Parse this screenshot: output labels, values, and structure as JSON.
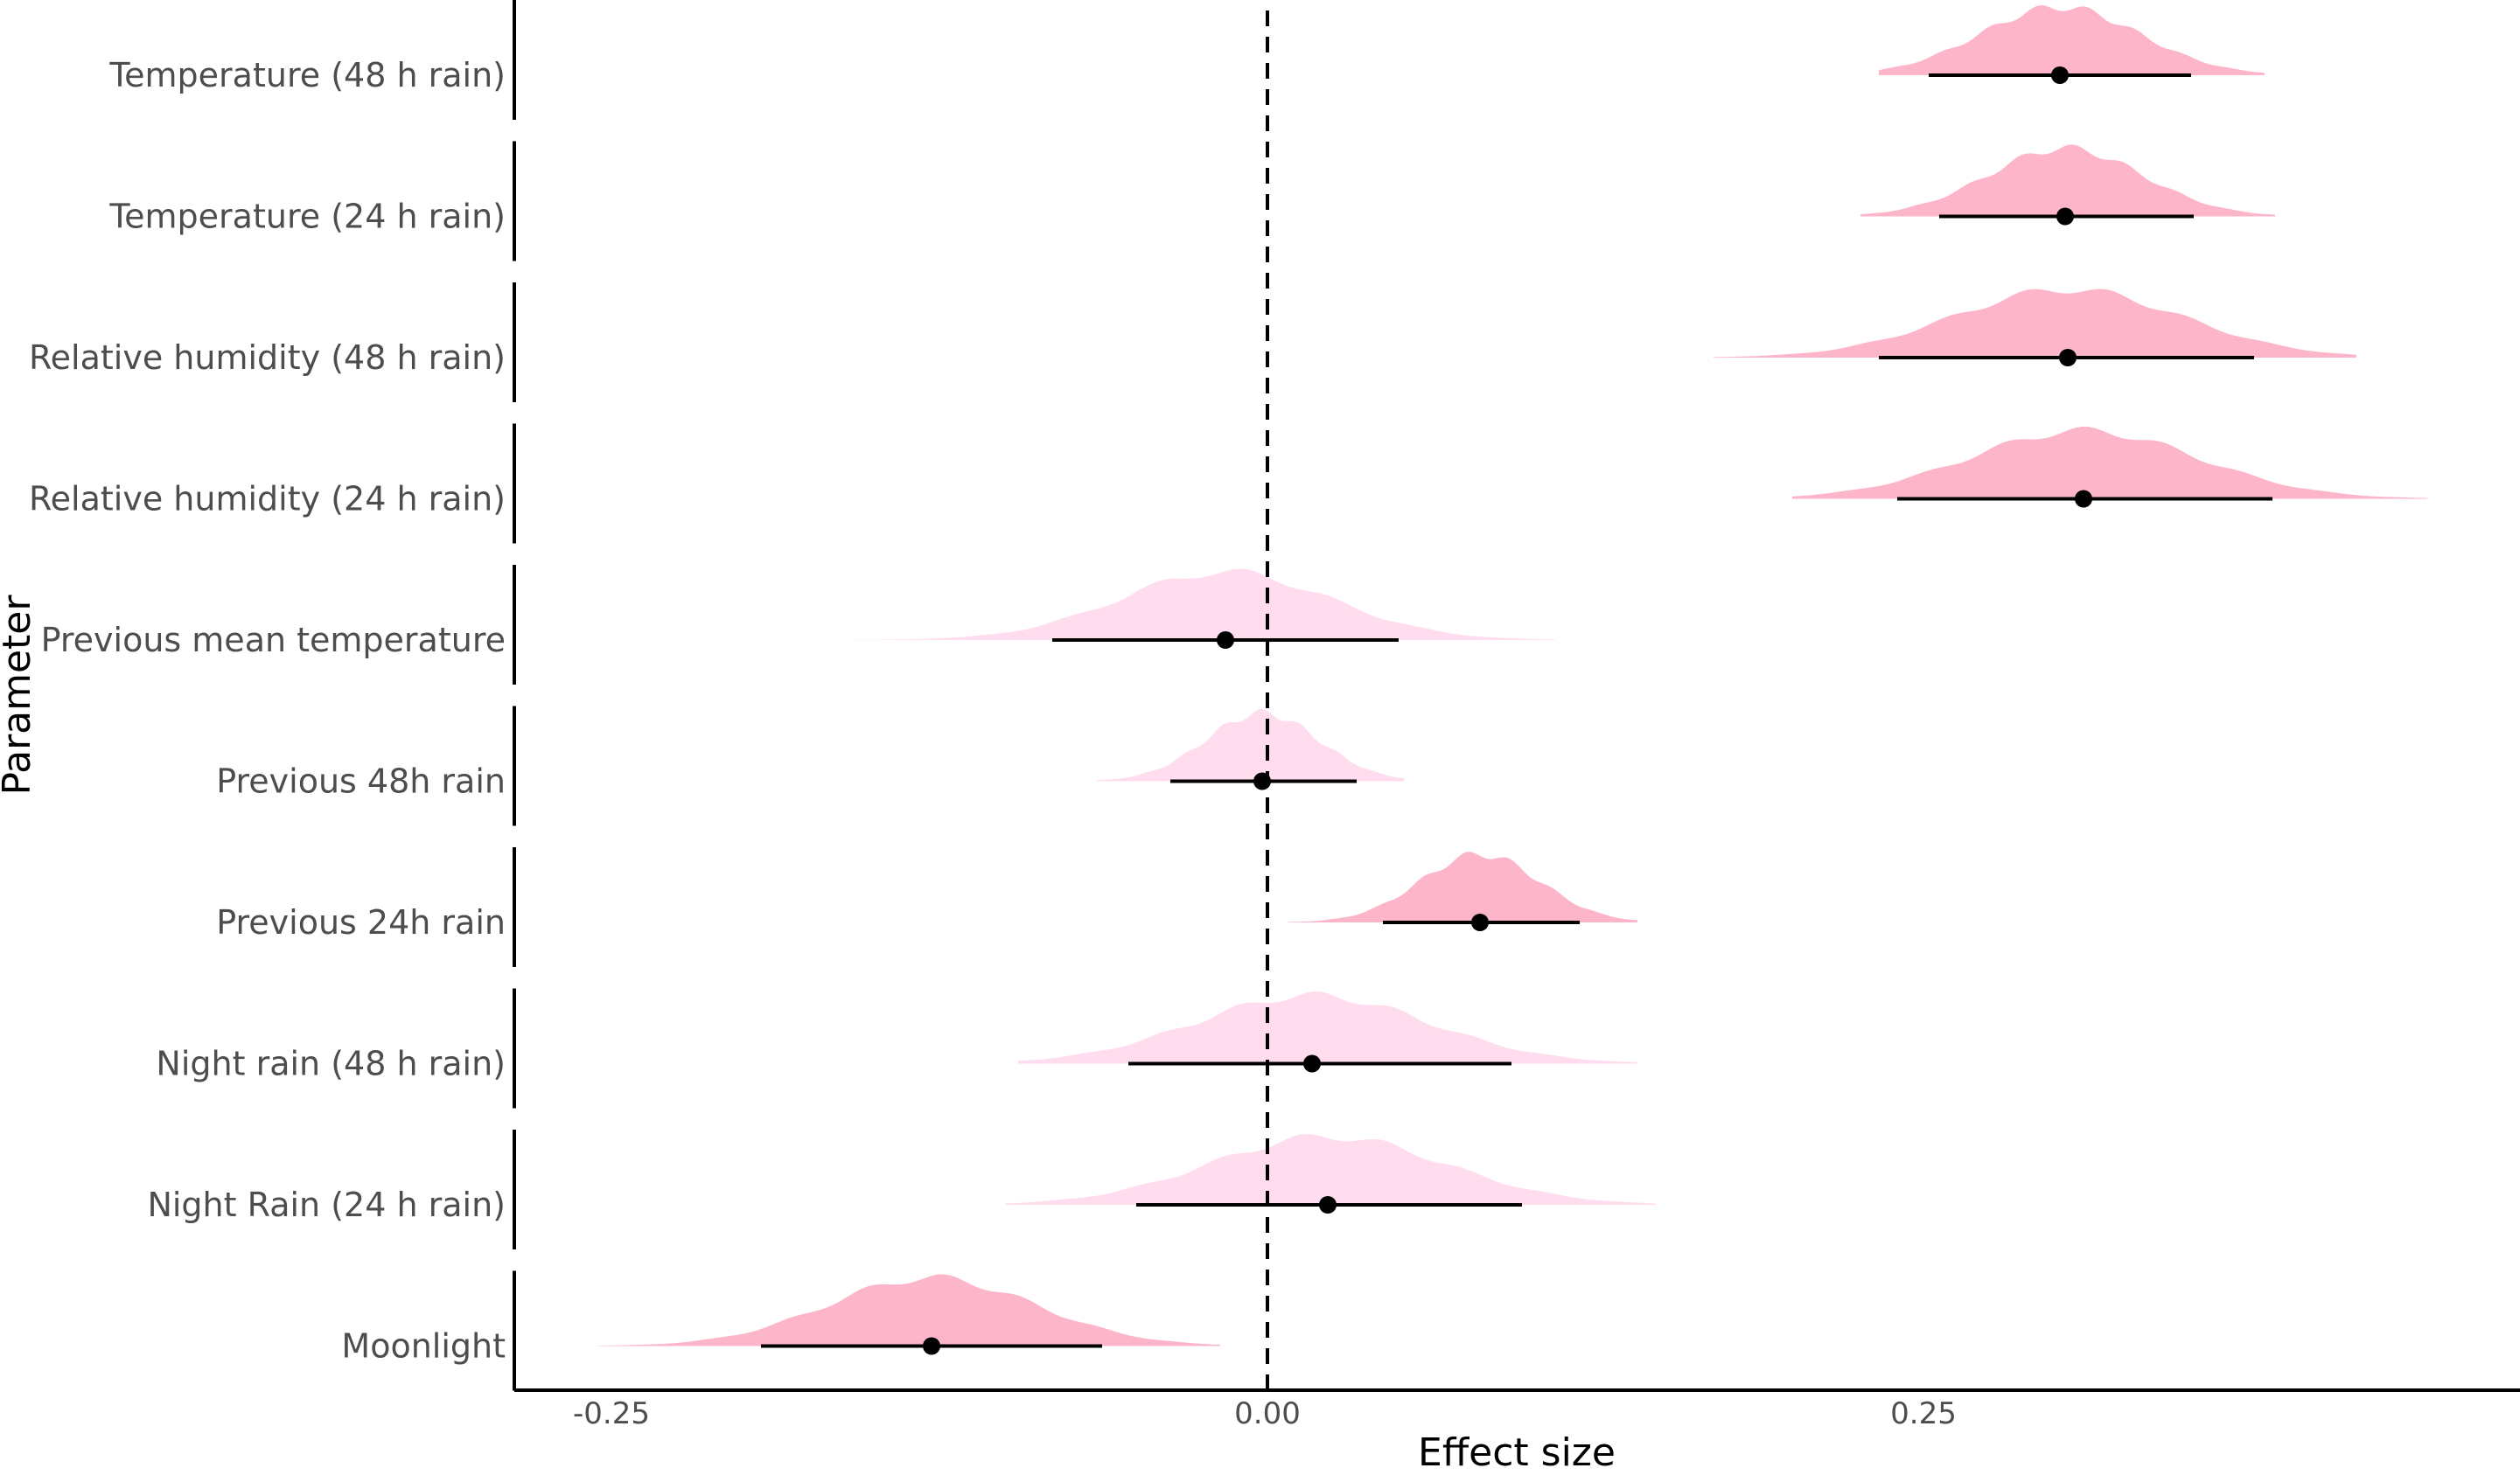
{
  "chart_data": {
    "type": "area",
    "subtype": "posterior-density-ridgeline",
    "xlabel": "Effect size",
    "ylabel": "Parameter",
    "xlim": [
      -0.255,
      0.48
    ],
    "x_ticks": [
      -0.25,
      0.0,
      0.25
    ],
    "x_tick_labels": [
      "-0.25",
      "0.00",
      "0.25"
    ],
    "reference_line": {
      "x": 0.0,
      "style": "dashed"
    },
    "grid": false,
    "colors": {
      "strong": "#FDB6C9",
      "weak": "#FFDDEE",
      "point": "#000000",
      "interval": "#000000"
    },
    "parameters": [
      {
        "name": "Temperature (48 h rain)",
        "mean": 0.302,
        "lo": 0.252,
        "hi": 0.352,
        "dmin": 0.233,
        "dmax": 0.38,
        "strength": "strong"
      },
      {
        "name": "Temperature (24 h rain)",
        "mean": 0.304,
        "lo": 0.256,
        "hi": 0.353,
        "dmin": 0.226,
        "dmax": 0.384,
        "strength": "strong"
      },
      {
        "name": "Relative humidity (48 h rain)",
        "mean": 0.305,
        "lo": 0.233,
        "hi": 0.376,
        "dmin": 0.17,
        "dmax": 0.415,
        "strength": "strong"
      },
      {
        "name": "Relative humidity (24 h rain)",
        "mean": 0.311,
        "lo": 0.24,
        "hi": 0.383,
        "dmin": 0.2,
        "dmax": 0.442,
        "strength": "strong"
      },
      {
        "name": "Previous mean temperature",
        "mean": -0.016,
        "lo": -0.082,
        "hi": 0.05,
        "dmin": -0.16,
        "dmax": 0.11,
        "strength": "weak"
      },
      {
        "name": "Previous 48h rain",
        "mean": -0.002,
        "lo": -0.037,
        "hi": 0.034,
        "dmin": -0.065,
        "dmax": 0.052,
        "strength": "weak"
      },
      {
        "name": "Previous 24h rain",
        "mean": 0.081,
        "lo": 0.044,
        "hi": 0.119,
        "dmin": 0.008,
        "dmax": 0.141,
        "strength": "strong"
      },
      {
        "name": "Night rain (48 h rain)",
        "mean": 0.017,
        "lo": -0.053,
        "hi": 0.093,
        "dmin": -0.095,
        "dmax": 0.141,
        "strength": "weak"
      },
      {
        "name": "Night Rain (24 h rain)",
        "mean": 0.023,
        "lo": -0.05,
        "hi": 0.097,
        "dmin": -0.1,
        "dmax": 0.148,
        "strength": "weak"
      },
      {
        "name": "Moonlight",
        "mean": -0.128,
        "lo": -0.193,
        "hi": -0.063,
        "dmin": -0.255,
        "dmax": -0.018,
        "strength": "strong"
      }
    ]
  }
}
